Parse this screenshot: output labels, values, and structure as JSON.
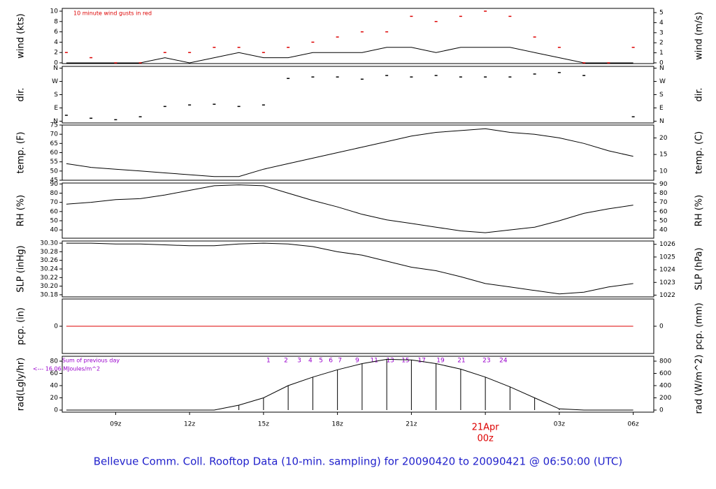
{
  "title": "Bellevue Comm. Coll. Rooftop Data (10-min. sampling) for 20090420  to  20090421 @ 06:50:00  (UTC)",
  "chart_data": [
    {
      "type": "line",
      "ylabel": "wind (kts)",
      "y2label": "wind (m/s)",
      "note": "10  minute wind gusts in red",
      "x": [
        7,
        8,
        9,
        10,
        11,
        12,
        13,
        14,
        15,
        16,
        17,
        18,
        19,
        20,
        21,
        22,
        23,
        24,
        25,
        26,
        27,
        28,
        29,
        30
      ],
      "xlim": [
        6.8333,
        30.8333
      ],
      "ylim": [
        -0.14,
        10.54
      ],
      "yticks": [
        0,
        2,
        4,
        6,
        8,
        10
      ],
      "y2lim": [
        -0.072,
        5.42
      ],
      "y2ticks": [
        0,
        1,
        2,
        3,
        4,
        5
      ],
      "series": [
        {
          "mark": "line",
          "color": "#000000",
          "values": [
            0,
            0,
            0,
            0,
            1,
            0,
            1,
            2,
            1,
            1,
            2,
            2,
            2,
            3,
            3,
            2,
            3,
            3,
            3,
            2,
            1,
            0,
            0,
            0
          ]
        },
        {
          "mark": "dashes",
          "color": "#dd0000",
          "values": [
            2,
            1,
            0,
            0,
            2,
            2,
            3,
            3,
            2,
            3,
            4,
            5,
            6,
            6,
            9,
            8,
            9,
            10,
            9,
            5,
            3,
            0,
            0,
            3
          ]
        }
      ]
    },
    {
      "type": "scatter",
      "ylabel": "dir.",
      "y2label": "dir.",
      "x": [
        7,
        8,
        9,
        10,
        11,
        12,
        13,
        14,
        15,
        16,
        17,
        18,
        19,
        20,
        21,
        22,
        23,
        24,
        25,
        26,
        27,
        28,
        29,
        30
      ],
      "xlim": [
        6.8333,
        30.8333
      ],
      "ylim": [
        -12,
        372
      ],
      "yticks": [
        {
          "value": 0,
          "label": "N"
        },
        {
          "value": 90,
          "label": "E"
        },
        {
          "value": 180,
          "label": "S"
        },
        {
          "value": 270,
          "label": "W"
        },
        {
          "value": 360,
          "label": "N"
        }
      ],
      "y2lim": [
        -12,
        372
      ],
      "y2ticks": [
        {
          "value": 0,
          "label": "N"
        },
        {
          "value": 90,
          "label": "E"
        },
        {
          "value": 180,
          "label": "S"
        },
        {
          "value": 270,
          "label": "W"
        },
        {
          "value": 360,
          "label": "N"
        }
      ],
      "series": [
        {
          "mark": "dashes",
          "color": "#000000",
          "values": [
            40,
            20,
            10,
            30,
            100,
            110,
            115,
            100,
            110,
            290,
            300,
            300,
            285,
            310,
            300,
            310,
            300,
            300,
            300,
            320,
            330,
            310,
            null,
            30
          ]
        }
      ]
    },
    {
      "type": "line",
      "ylabel": "temp. (F)",
      "y2label": "temp. (C)",
      "x": [
        7,
        8,
        9,
        10,
        11,
        12,
        13,
        14,
        15,
        16,
        17,
        18,
        19,
        20,
        21,
        22,
        23,
        24,
        25,
        26,
        27,
        28,
        29,
        30
      ],
      "xlim": [
        6.8333,
        30.8333
      ],
      "ylim": [
        45,
        75
      ],
      "yticks": [
        45,
        50,
        55,
        60,
        65,
        70,
        75
      ],
      "y2lim": [
        7.22,
        23.89
      ],
      "y2ticks": [
        10,
        15,
        20
      ],
      "series": [
        {
          "mark": "line",
          "color": "#000000",
          "values": [
            54,
            52,
            51,
            50,
            49,
            48,
            47,
            47,
            51,
            54,
            57,
            60,
            63,
            66,
            69,
            71,
            72,
            73,
            71,
            70,
            68,
            65,
            61,
            58
          ]
        }
      ]
    },
    {
      "type": "line",
      "ylabel": "RH (%)",
      "y2label": "RH (%)",
      "x": [
        7,
        8,
        9,
        10,
        11,
        12,
        13,
        14,
        15,
        16,
        17,
        18,
        19,
        20,
        21,
        22,
        23,
        24,
        25,
        26,
        27,
        28,
        29,
        30
      ],
      "xlim": [
        6.8333,
        30.8333
      ],
      "ylim": [
        31,
        91
      ],
      "yticks": [
        40,
        50,
        60,
        70,
        80,
        90
      ],
      "y2lim": [
        31,
        91
      ],
      "y2ticks": [
        40,
        50,
        60,
        70,
        80,
        90
      ],
      "series": [
        {
          "mark": "line",
          "color": "#000000",
          "values": [
            68,
            70,
            73,
            74,
            78,
            83,
            88,
            89,
            88,
            80,
            72,
            65,
            57,
            51,
            47,
            43,
            39,
            37,
            40,
            43,
            50,
            58,
            63,
            67
          ]
        }
      ]
    },
    {
      "type": "line",
      "ylabel": "SLP (inHg)",
      "y2label": "SLP (hPa)",
      "x": [
        7,
        8,
        9,
        10,
        11,
        12,
        13,
        14,
        15,
        16,
        17,
        18,
        19,
        20,
        21,
        22,
        23,
        24,
        25,
        26,
        27,
        28,
        29,
        30
      ],
      "xlim": [
        6.8333,
        30.8333
      ],
      "ylim": [
        30.175,
        30.305
      ],
      "yticks": [
        {
          "value": 30.18,
          "label": "30.18"
        },
        {
          "value": 30.2,
          "label": "30.20"
        },
        {
          "value": 30.22,
          "label": "30.22"
        },
        {
          "value": 30.24,
          "label": "30.24"
        },
        {
          "value": 30.26,
          "label": "30.26"
        },
        {
          "value": 30.28,
          "label": "30.28"
        },
        {
          "value": 30.3,
          "label": "30.30"
        }
      ],
      "y2lim": [
        1021.86,
        1026.26
      ],
      "y2ticks": [
        1022,
        1023,
        1024,
        1025,
        1026
      ],
      "series": [
        {
          "mark": "line",
          "color": "#000000",
          "values": [
            30.3,
            30.3,
            30.298,
            30.298,
            30.296,
            30.294,
            30.294,
            30.298,
            30.3,
            30.298,
            30.292,
            30.28,
            30.272,
            30.258,
            30.244,
            30.236,
            30.222,
            30.206,
            30.198,
            30.19,
            30.182,
            30.186,
            30.198,
            30.206
          ]
        }
      ]
    },
    {
      "type": "line",
      "ylabel": "pcp. (in)",
      "y2label": "pcp. (mm)",
      "x": [
        7,
        8,
        9,
        10,
        11,
        12,
        13,
        14,
        15,
        16,
        17,
        18,
        19,
        20,
        21,
        22,
        23,
        24,
        25,
        26,
        27,
        28,
        29,
        30
      ],
      "xlim": [
        6.8333,
        30.8333
      ],
      "ylim": [
        -1,
        1
      ],
      "yticks": [
        0
      ],
      "y2lim": [
        -25.4,
        25.4
      ],
      "y2ticks": [
        0
      ],
      "series": [
        {
          "mark": "line",
          "color": "#dd0000",
          "values": [
            0,
            0,
            0,
            0,
            0,
            0,
            0,
            0,
            0,
            0,
            0,
            0,
            0,
            0,
            0,
            0,
            0,
            0,
            0,
            0,
            0,
            0,
            0,
            0
          ]
        }
      ]
    },
    {
      "type": "line",
      "ylabel": "rad(Lgly/hr)",
      "y2label": "rad (W/m^2)",
      "notes": [
        "Sum of previous day",
        "<--- 16.06 MJoules/m^2"
      ],
      "markers": {
        "labels": [
          "1",
          "2",
          "3",
          "4",
          "5",
          "6",
          "7",
          "9",
          "11",
          "13",
          "15",
          "17",
          "19",
          "21",
          "23",
          "24"
        ],
        "x": [
          15.2,
          15.91,
          16.45,
          16.9,
          17.33,
          17.73,
          18.1,
          18.8,
          19.49,
          20.14,
          20.76,
          21.42,
          22.18,
          23.03,
          24.05,
          24.73
        ]
      },
      "x": [
        7,
        8,
        9,
        10,
        11,
        12,
        13,
        14,
        15,
        16,
        17,
        18,
        19,
        20,
        21,
        22,
        23,
        24,
        25,
        26,
        27,
        28,
        29,
        30
      ],
      "xlim": [
        6.8333,
        30.8333
      ],
      "xticks": [
        {
          "value": 9,
          "label": "09z"
        },
        {
          "value": 12,
          "label": "12z"
        },
        {
          "value": 15,
          "label": "15z"
        },
        {
          "value": 18,
          "label": "18z"
        },
        {
          "value": 21,
          "label": "21z"
        },
        {
          "value": 24,
          "label": "00z"
        },
        {
          "value": 27,
          "label": "03z"
        },
        {
          "value": 30,
          "label": "06z"
        }
      ],
      "date_label": {
        "text": "21Apr",
        "value": 24,
        "color": "#dd0000"
      },
      "ylim": [
        -3.4,
        88
      ],
      "yticks": [
        0,
        20,
        40,
        60,
        80
      ],
      "y2lim": [
        -34,
        880
      ],
      "y2ticks": [
        0,
        200,
        400,
        600,
        800
      ],
      "series": [
        {
          "mark": "stems",
          "axis": "y2",
          "color": "#000000",
          "values": [
            0,
            0,
            0,
            0,
            0,
            0,
            0,
            80,
            200,
            400,
            540,
            660,
            760,
            830,
            820,
            760,
            670,
            540,
            380,
            200,
            20,
            0,
            0,
            0
          ]
        }
      ]
    }
  ]
}
